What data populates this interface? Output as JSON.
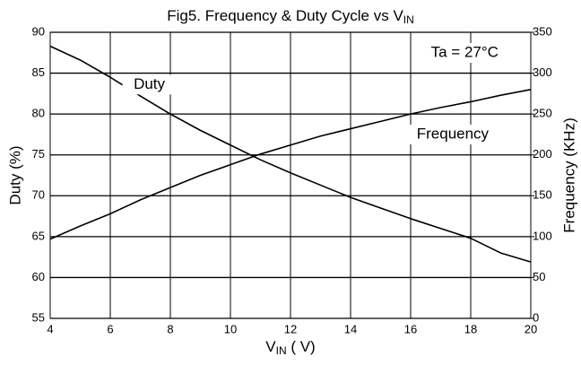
{
  "chart_data": {
    "type": "line",
    "title": {
      "main": "Fig5. Frequency & Duty Cycle vs V",
      "sub": "IN"
    },
    "x_label": {
      "main": "V",
      "sub": "IN",
      "rest": " ( V)"
    },
    "y_label": "Duty (%)",
    "y2_label": "Frequency (KHz)",
    "annotation": "Ta = 27°C",
    "x": [
      4,
      5,
      6,
      7,
      8,
      9,
      10,
      11,
      12,
      13,
      14,
      15,
      16,
      17,
      18,
      19,
      20
    ],
    "series": [
      {
        "name": "Duty",
        "color": "#000000",
        "axis": "y",
        "values": [
          88.3,
          86.6,
          84.5,
          82.2,
          80,
          78,
          76.2,
          74.4,
          72.8,
          71.3,
          69.8,
          68.5,
          67.2,
          66,
          64.8,
          63,
          61.9
        ]
      },
      {
        "name": "Frequency",
        "color": "#000000",
        "axis": "y2",
        "values": [
          97,
          113,
          128,
          145,
          160,
          175,
          188,
          201,
          212,
          223,
          232,
          241,
          250,
          258,
          265,
          273,
          280
        ]
      }
    ],
    "xlim": [
      4,
      20
    ],
    "xticks": [
      4,
      6,
      8,
      10,
      12,
      14,
      16,
      18,
      20
    ],
    "ylim": [
      55,
      90
    ],
    "yticks": [
      55,
      60,
      65,
      70,
      75,
      80,
      85,
      90
    ],
    "y2lim": [
      0,
      350
    ],
    "y2ticks": [
      0,
      50,
      100,
      150,
      200,
      250,
      300,
      350
    ],
    "grid": true
  }
}
